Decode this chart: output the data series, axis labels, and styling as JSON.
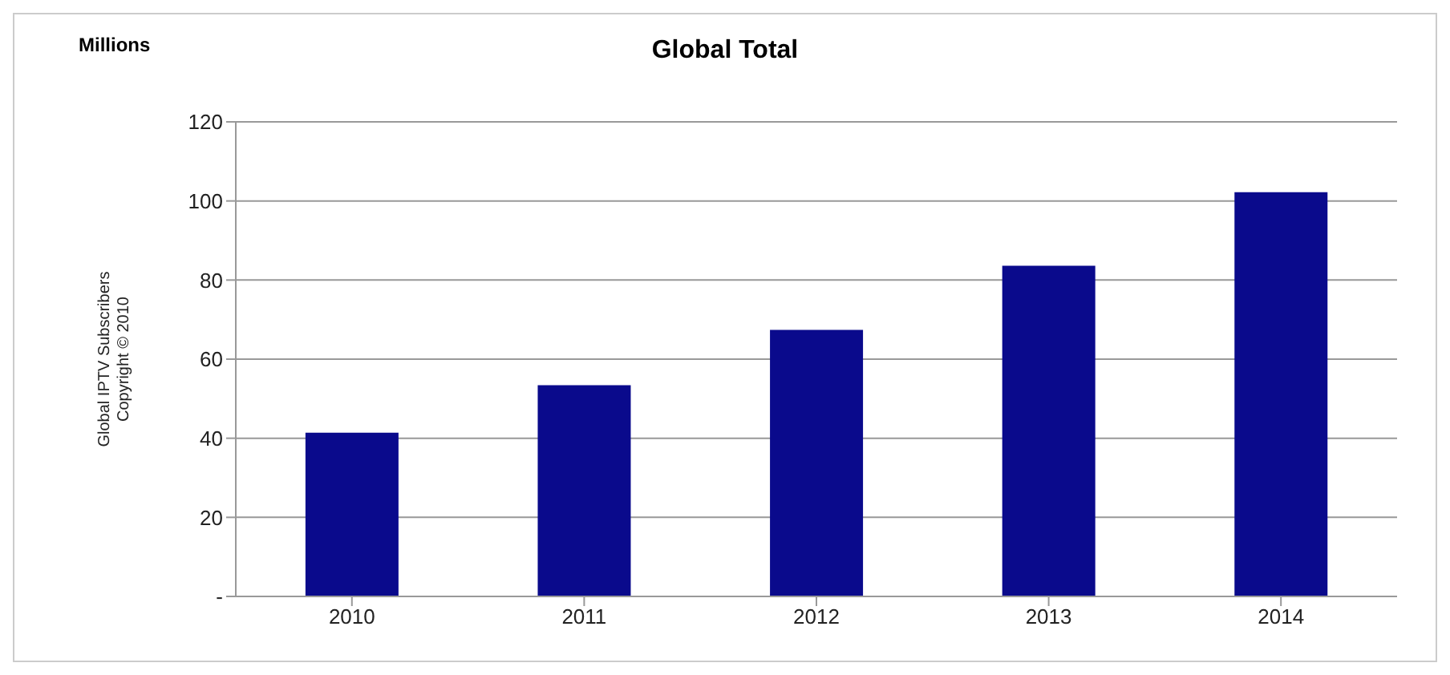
{
  "chart_data": {
    "type": "bar",
    "title": "Global Total",
    "ylabel": "Global IPTV Subscribers\nCopyright © 2010",
    "annotations": [
      "Millions"
    ],
    "categories": [
      "2010",
      "2011",
      "2012",
      "2013",
      "2014"
    ],
    "values": [
      41.4,
      53.4,
      67.4,
      83.6,
      102.2
    ],
    "color": "#0a0a8c",
    "ylim": [
      0,
      120
    ],
    "yticks": [
      {
        "value": 0,
        "label": "-"
      },
      20,
      40,
      60,
      80,
      100,
      120
    ],
    "grid": "y",
    "legend": false
  }
}
